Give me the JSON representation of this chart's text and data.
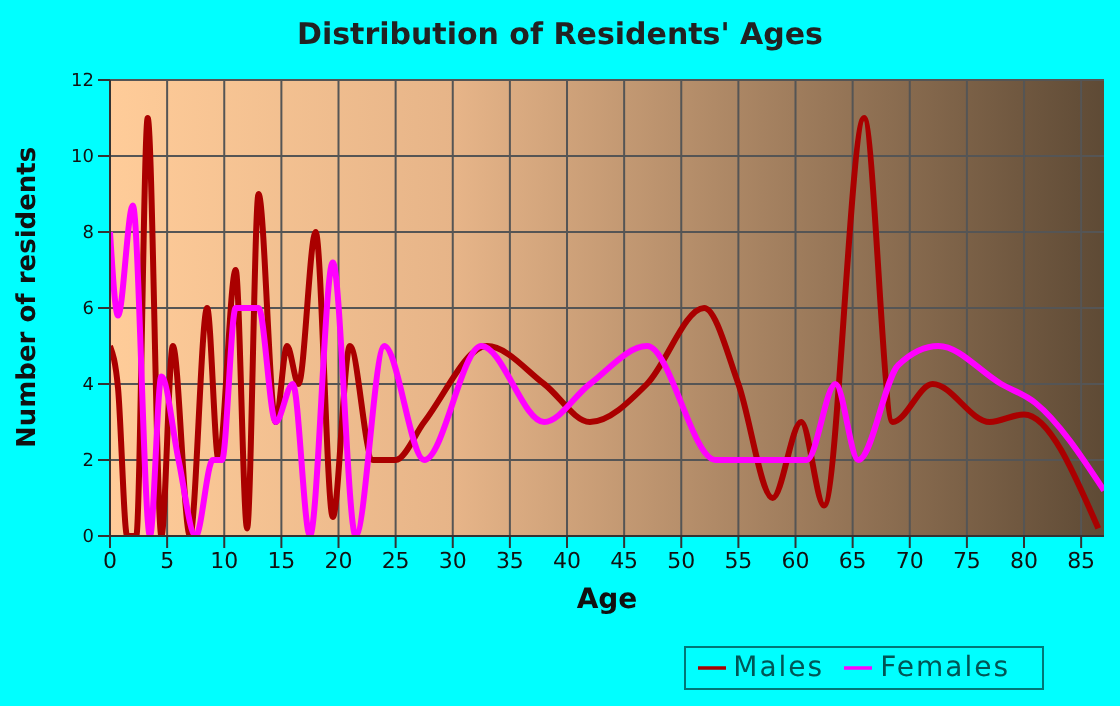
{
  "chart_data": {
    "type": "line",
    "title": "Distribution of Residents' Ages",
    "xlabel": "Age",
    "ylabel": "Number of residents",
    "xlim": [
      0,
      87
    ],
    "xticks": [
      0,
      5,
      10,
      15,
      20,
      25,
      30,
      35,
      40,
      45,
      50,
      55,
      60,
      65,
      70,
      75,
      80,
      85
    ],
    "ylim": [
      0,
      12
    ],
    "yticks": [
      0,
      2,
      4,
      6,
      8,
      10,
      12
    ],
    "grid": true,
    "legend": "bottom right",
    "series": [
      {
        "name": "Males",
        "color": "#aa0000",
        "x": [
          0,
          0.7,
          1.5,
          2.3,
          3.3,
          4.5,
          5.5,
          7,
          8.5,
          9.5,
          11,
          12,
          13,
          14.5,
          15.5,
          16.5,
          18,
          19.5,
          21,
          23,
          25,
          27.5,
          33,
          38,
          42,
          47,
          52,
          55,
          58,
          60.5,
          62.5,
          66,
          68.5,
          72,
          77,
          80,
          86.5
        ],
        "values": [
          5,
          3.9,
          0,
          0,
          11,
          0,
          5,
          0,
          6,
          2,
          7,
          0.2,
          9,
          3,
          5,
          4,
          8,
          0.5,
          5,
          2,
          2,
          3,
          5,
          4,
          3,
          4,
          6,
          4,
          1,
          3,
          0.8,
          11,
          3,
          4,
          3,
          3.2,
          0.2
        ]
      },
      {
        "name": "Females",
        "color": "#ff00ff",
        "x": [
          0,
          0.7,
          2,
          3.5,
          4.5,
          6,
          7.5,
          9,
          9.8,
          11,
          13,
          14.5,
          16,
          17.5,
          19.5,
          21.5,
          24,
          27.5,
          32.5,
          38,
          42,
          47,
          53,
          58,
          61,
          63.5,
          65.5,
          69,
          72.5,
          78,
          81,
          87
        ],
        "values": [
          8,
          5.8,
          8.7,
          0,
          4.2,
          2,
          0,
          2,
          2,
          6,
          6,
          3,
          4,
          0,
          7.2,
          0,
          5,
          2,
          5,
          3,
          4,
          5,
          2,
          2,
          2,
          4,
          2,
          4.5,
          5,
          4,
          3.5,
          1.2
        ]
      }
    ]
  }
}
